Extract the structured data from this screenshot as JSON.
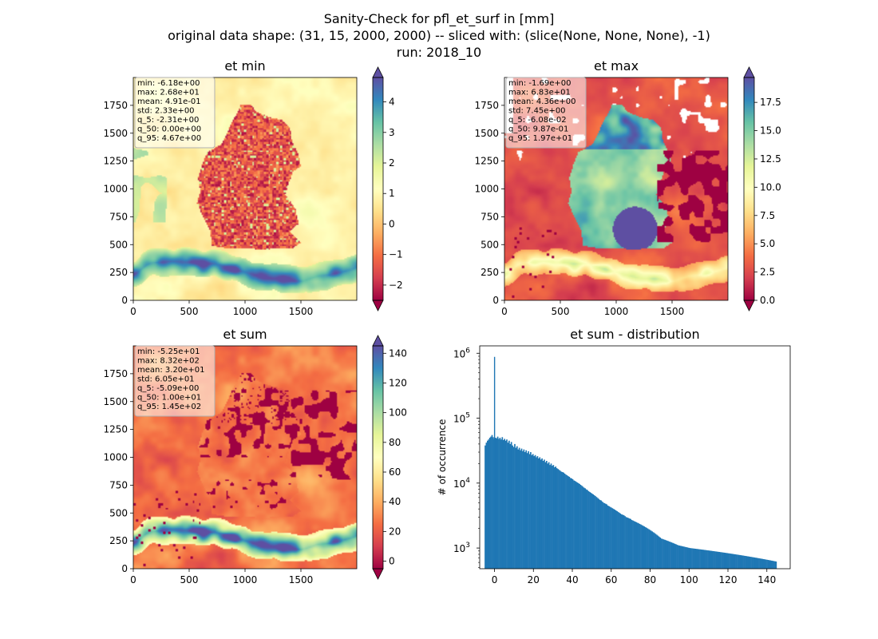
{
  "figure": {
    "title_lines": [
      "Sanity-Check for pfl_et_surf in [mm]",
      "original data shape: (31, 15, 2000, 2000) -- sliced with: (slice(None, None, None), -1)",
      "run: 2018_10"
    ]
  },
  "colors": {
    "colormap": [
      "#9e0142",
      "#d53e4f",
      "#f46d43",
      "#fdae61",
      "#fee08b",
      "#ffffbf",
      "#e6f598",
      "#abdda4",
      "#66c2a5",
      "#3288bd",
      "#5e4fa2"
    ],
    "histogram_bar": "#1f77b4"
  },
  "chart_data": [
    {
      "type": "heatmap",
      "title": "et min",
      "x_ticks": [
        0,
        500,
        1000,
        1500
      ],
      "y_ticks": [
        0,
        250,
        500,
        750,
        1000,
        1250,
        1500,
        1750
      ],
      "xlim": [
        0,
        2000
      ],
      "ylim": [
        0,
        2000
      ],
      "colorbar": {
        "vmin": -2.5,
        "vmax": 4.8,
        "ticks": [
          -2,
          -1,
          0,
          1,
          2,
          3,
          4
        ],
        "tick_labels": [
          "−2",
          "−1",
          "0",
          "1",
          "2",
          "3",
          "4"
        ],
        "extend": "both"
      },
      "stats": [
        "min: -6.18e+00",
        "max: 2.68e+01",
        "mean: 4.91e-01",
        "std: 2.33e+00",
        "q_5: -2.31e+00",
        "q_50: 0.00e+00",
        "q_95: 4.67e+00"
      ]
    },
    {
      "type": "heatmap",
      "title": "et max",
      "x_ticks": [
        0,
        500,
        1000,
        1500
      ],
      "y_ticks": [
        0,
        250,
        500,
        750,
        1000,
        1250,
        1500,
        1750
      ],
      "xlim": [
        0,
        2000
      ],
      "ylim": [
        0,
        2000
      ],
      "colorbar": {
        "vmin": 0.0,
        "vmax": 19.7,
        "ticks": [
          0,
          2.5,
          5,
          7.5,
          10,
          12.5,
          15,
          17.5
        ],
        "tick_labels": [
          "0.0",
          "2.5",
          "5.0",
          "7.5",
          "10.0",
          "12.5",
          "15.0",
          "17.5"
        ],
        "extend": "both"
      },
      "stats": [
        "min: -1.69e+00",
        "max: 6.83e+01",
        "mean: 4.36e+00",
        "std: 7.45e+00",
        "q_5: -6.08e-02",
        "q_50: 9.87e-01",
        "q_95: 1.97e+01"
      ]
    },
    {
      "type": "heatmap",
      "title": "et sum",
      "x_ticks": [
        0,
        500,
        1000,
        1500
      ],
      "y_ticks": [
        0,
        250,
        500,
        750,
        1000,
        1250,
        1500,
        1750
      ],
      "xlim": [
        0,
        2000
      ],
      "ylim": [
        0,
        2000
      ],
      "colorbar": {
        "vmin": -5.09,
        "vmax": 145,
        "ticks": [
          0,
          20,
          40,
          60,
          80,
          100,
          120,
          140
        ],
        "tick_labels": [
          "0",
          "20",
          "40",
          "60",
          "80",
          "100",
          "120",
          "140"
        ],
        "extend": "both"
      },
      "stats": [
        "min: -5.25e+01",
        "max: 8.32e+02",
        "mean: 3.20e+01",
        "std: 6.05e+01",
        "q_5: -5.09e+00",
        "q_50: 1.00e+01",
        "q_95: 1.45e+02"
      ]
    },
    {
      "type": "bar",
      "title": "et sum - distribution",
      "ylabel": "# of occurrence",
      "yscale": "log",
      "xlim": [
        -7.6,
        152
      ],
      "ylim": [
        480,
        1300000
      ],
      "x_ticks": [
        0,
        20,
        40,
        60,
        80,
        100,
        120,
        140
      ],
      "y_ticks": [
        {
          "value": 1000,
          "base": "10",
          "exp": "3"
        },
        {
          "value": 10000,
          "base": "10",
          "exp": "4"
        },
        {
          "value": 100000,
          "base": "10",
          "exp": "5"
        },
        {
          "value": 1000000,
          "base": "10",
          "exp": "6"
        }
      ],
      "bins": {
        "start": -5.09,
        "end": 145,
        "spike": {
          "x": 0,
          "y": 880000
        }
      },
      "values": [
        38000,
        42000,
        45000,
        47000,
        50000,
        52000,
        55000,
        51000,
        48000,
        50000,
        49000,
        52000,
        48000,
        50000,
        47000,
        51000,
        46000,
        48000,
        45000,
        47000,
        42000,
        45000,
        40000,
        43000,
        38000,
        36000,
        40000,
        35000,
        37000,
        33000,
        35000,
        32000,
        34000,
        31000,
        33000,
        30000,
        32000,
        29000,
        31000,
        28000,
        30000,
        27000,
        28000,
        26000,
        27000,
        25000,
        26000,
        24000,
        25000,
        23000,
        24000,
        22000,
        23000,
        21000,
        22000,
        20000,
        21000,
        19000,
        20000,
        18500,
        19000,
        17500,
        18000,
        17000,
        16500,
        16000,
        15500,
        15000,
        14800,
        14500,
        14000,
        13500,
        13200,
        12800,
        12500,
        12000,
        11800,
        11500,
        11000,
        10800,
        10500,
        10200,
        10000,
        9700,
        9400,
        9100,
        8800,
        8500,
        8300,
        8000,
        7800,
        7500,
        7300,
        7100,
        6900,
        6700,
        6500,
        6300,
        6100,
        5900,
        5700,
        5500,
        5400,
        5200,
        5000,
        4900,
        4800,
        4700,
        4500,
        4400,
        4300,
        4200,
        4100,
        4000,
        3900,
        3800,
        3700,
        3600,
        3500,
        3400,
        3300,
        3250,
        3200,
        3100,
        3000,
        2950,
        2900,
        2850,
        2800,
        2700,
        2650,
        2600,
        2550,
        2500,
        2450,
        2400,
        2350,
        2300,
        2250,
        2200,
        2150,
        2100,
        2050,
        2000,
        1950,
        1900,
        1850,
        1800,
        1750,
        1700,
        1650,
        1600,
        1550,
        1500,
        1450,
        1400,
        1380,
        1360,
        1340,
        1320,
        1300,
        1280,
        1260,
        1240,
        1220,
        1200,
        1180,
        1160,
        1140,
        1120,
        1100,
        1090,
        1080,
        1070,
        1060,
        1050,
        1040,
        1030,
        1020,
        1010,
        1000,
        995,
        990,
        985,
        980,
        975,
        970,
        965,
        960,
        955,
        950,
        945,
        940,
        935,
        930,
        925,
        920,
        915,
        910,
        905,
        900,
        895,
        890,
        885,
        880,
        875,
        870,
        865,
        860,
        855,
        850,
        845,
        840,
        835,
        830,
        825,
        820,
        815,
        810,
        805,
        800,
        795,
        790,
        785,
        780,
        775,
        770,
        765,
        760,
        755,
        750,
        745,
        740,
        735,
        730,
        725,
        720,
        715,
        710,
        705,
        700,
        695,
        690,
        685,
        680,
        675,
        670,
        665,
        660,
        655,
        650,
        645,
        640,
        635,
        630,
        625,
        620
      ]
    }
  ]
}
